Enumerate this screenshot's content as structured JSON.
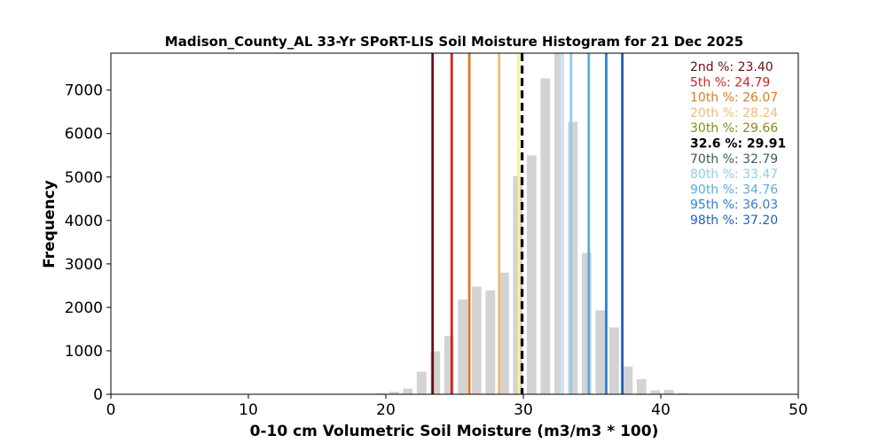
{
  "chart_data": {
    "type": "bar",
    "title": "Madison_County_AL 33-Yr SPoRT-LIS Soil Moisture Histogram for 21 Dec 2025",
    "xlabel": "0-10 cm Volumetric Soil Moisture (m3/m3 * 100)",
    "ylabel": "Frequency",
    "xlim": [
      0,
      50
    ],
    "ylim": [
      0,
      7850
    ],
    "xticks": [
      0,
      10,
      20,
      30,
      40,
      50
    ],
    "yticks": [
      0,
      1000,
      2000,
      3000,
      4000,
      5000,
      6000,
      7000
    ],
    "grid": false,
    "bin_width": 0.7,
    "x": [
      19.6,
      20.6,
      21.6,
      22.6,
      23.6,
      24.6,
      25.6,
      26.6,
      27.6,
      28.6,
      29.6,
      30.6,
      31.6,
      32.6,
      33.6,
      34.6,
      35.6,
      36.6,
      37.6,
      38.6,
      39.6,
      40.6,
      41.6
    ],
    "values": [
      20,
      60,
      130,
      520,
      990,
      1340,
      2180,
      2480,
      2390,
      2800,
      5020,
      5500,
      7270,
      7850,
      6270,
      3250,
      1930,
      1540,
      640,
      350,
      90,
      100,
      30
    ],
    "percentiles": [
      {
        "label": "2nd %: 23.40",
        "value": 23.4,
        "color": "#6b0d0d",
        "style": "solid"
      },
      {
        "label": "5th %: 24.79",
        "value": 24.79,
        "color": "#d42020",
        "style": "solid"
      },
      {
        "label": "10th %: 26.07",
        "value": 26.07,
        "color": "#e07a22",
        "style": "solid"
      },
      {
        "label": "20th %: 28.24",
        "value": 28.24,
        "color": "#f5b97a",
        "style": "solid"
      },
      {
        "label": "30th %: 29.66",
        "value": 29.66,
        "color": "#f7f08a",
        "style": "solid"
      },
      {
        "label": "32.6 %: 29.91",
        "value": 29.91,
        "color": "#000000",
        "style": "dashed"
      },
      {
        "label": "70th %: 32.79",
        "value": 32.79,
        "color": "#c9e9f5",
        "style": "solid"
      },
      {
        "label": "80th %: 33.47",
        "value": 33.47,
        "color": "#8fcce8",
        "style": "solid"
      },
      {
        "label": "90th %: 34.76",
        "value": 34.76,
        "color": "#5aaae0",
        "style": "solid"
      },
      {
        "label": "95th %: 36.03",
        "value": 36.03,
        "color": "#2f7ed8",
        "style": "solid"
      },
      {
        "label": "98th %: 37.20",
        "value": 37.2,
        "color": "#1f5fbf",
        "style": "solid"
      }
    ]
  }
}
